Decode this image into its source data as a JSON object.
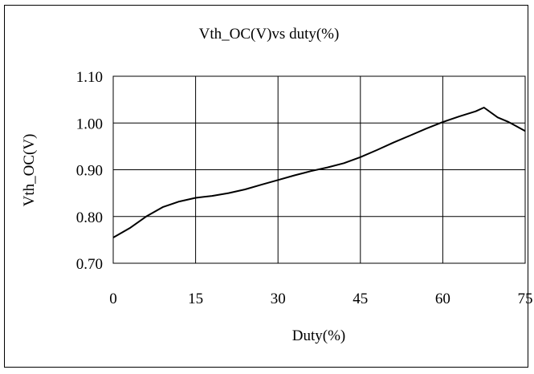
{
  "chart_data": {
    "type": "line",
    "title": "Vth_OC(V)vs duty(%)",
    "xlabel": "Duty(%)",
    "ylabel": "Vth_OC(V)",
    "xlim": [
      0,
      75
    ],
    "ylim": [
      0.7,
      1.1
    ],
    "x_ticks": [
      "0",
      "15",
      "30",
      "45",
      "60",
      "75"
    ],
    "y_ticks": [
      "0.70",
      "0.80",
      "0.90",
      "1.00",
      "1.10"
    ],
    "grid": true,
    "legend": "none",
    "series": [
      {
        "color": "#000000",
        "x": [
          0,
          3,
          6,
          9,
          12,
          15,
          18,
          21,
          24,
          27,
          30,
          33,
          36,
          39,
          42,
          45,
          48,
          51,
          54,
          57,
          60,
          63,
          66,
          67.5,
          70,
          72,
          75
        ],
        "y": [
          0.755,
          0.775,
          0.8,
          0.82,
          0.832,
          0.84,
          0.844,
          0.85,
          0.858,
          0.868,
          0.878,
          0.888,
          0.897,
          0.905,
          0.914,
          0.927,
          0.942,
          0.958,
          0.973,
          0.988,
          1.002,
          1.014,
          1.025,
          1.033,
          1.012,
          1.002,
          0.983
        ]
      }
    ]
  }
}
